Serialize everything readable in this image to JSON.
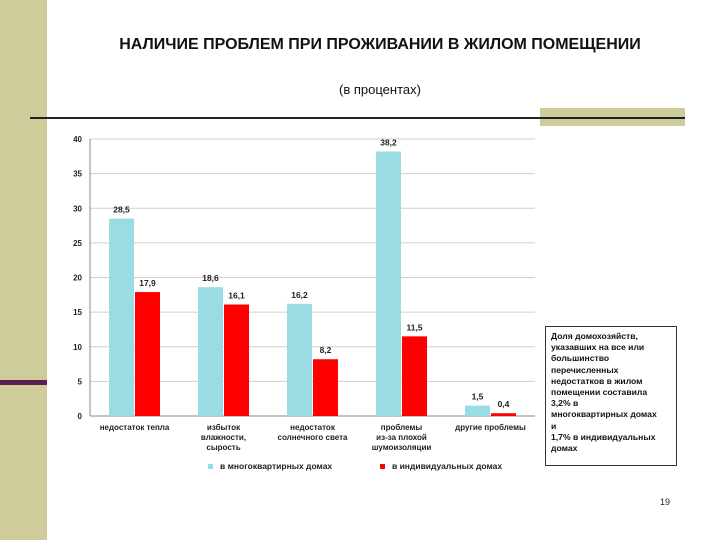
{
  "slide": {
    "title": "НАЛИЧИЕ ПРОБЛЕМ ПРИ ПРОЖИВАНИИ В ЖИЛОМ ПОМЕЩЕНИИ",
    "subtitle": "(в процентах)",
    "page_number": "19",
    "note": "Доля домохозяйств,\n указавших на все или\nбольшинство\nперечисленных\nнедостатков в жилом\nпомещении составила\n 3,2% в\nмногоквартирных домах\nи\n 1,7% в индивидуальных\nдомах"
  },
  "chart_data": {
    "type": "bar",
    "title": "",
    "xlabel": "",
    "ylabel": "",
    "ylim": [
      0,
      40
    ],
    "yticks": [
      "0",
      "5",
      "10",
      "15",
      "20",
      "25",
      "30",
      "35",
      "40"
    ],
    "grid": true,
    "legend_position": "bottom",
    "categories": [
      [
        "недостаток тепла"
      ],
      [
        "избыток",
        "влажности,",
        "сырость"
      ],
      [
        "недостаток",
        "солнечного света"
      ],
      [
        "проблемы",
        "из-за плохой",
        "шумоизоляции"
      ],
      [
        "другие проблемы"
      ]
    ],
    "series": [
      {
        "name": "в многоквартирных домах",
        "color": "#9adce3",
        "values": [
          28.5,
          18.6,
          16.2,
          38.2,
          1.5
        ],
        "labels": [
          "28,5",
          "18,6",
          "16,2",
          "38,2",
          "1,5"
        ]
      },
      {
        "name": "в индивидуальных домах",
        "color": "#ff0000",
        "values": [
          17.9,
          16.1,
          8.2,
          11.5,
          0.4
        ],
        "labels": [
          "17,9",
          "16,1",
          "8,2",
          "11,5",
          "0,4"
        ]
      }
    ]
  }
}
